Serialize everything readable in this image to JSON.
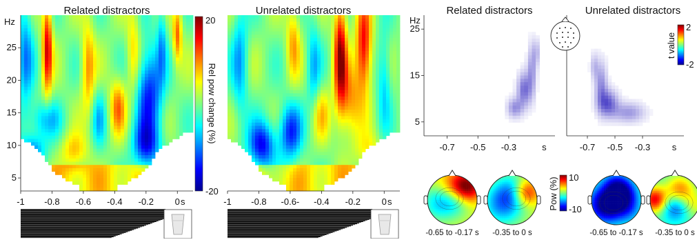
{
  "chart_data": [
    {
      "type": "heatmap",
      "title": "Related distractors",
      "ylabel": "Hz",
      "xlabel": "s",
      "xlim": [
        -1,
        0.1
      ],
      "ylim": [
        3,
        30
      ],
      "x_ticks": [
        "-1",
        "-0.8",
        "-0.6",
        "-0.4",
        "-0.2",
        "0"
      ],
      "y_ticks": [
        "25",
        "20",
        "15",
        "10",
        "5"
      ],
      "x_tick_values": [
        -1,
        -0.8,
        -0.6,
        -0.4,
        -0.2,
        0
      ],
      "y_tick_values": [
        25,
        20,
        15,
        10,
        5
      ],
      "blobs": [
        {
          "x": -0.83,
          "y": 25,
          "sx": 0.022,
          "sy": 5,
          "v": 16
        },
        {
          "x": -0.57,
          "y": 22,
          "sx": 0.03,
          "sy": 5,
          "v": 9
        },
        {
          "x": -0.38,
          "y": 16,
          "sx": 0.035,
          "sy": 3,
          "v": 10
        },
        {
          "x": -0.66,
          "y": 9,
          "sx": 0.06,
          "sy": 2,
          "v": 7
        },
        {
          "x": -0.18,
          "y": 18,
          "sx": 0.06,
          "sy": 5,
          "v": -14
        },
        {
          "x": -0.2,
          "y": 10,
          "sx": 0.06,
          "sy": 2.5,
          "v": -12
        },
        {
          "x": -0.97,
          "y": 24,
          "sx": 0.035,
          "sy": 6,
          "v": -9
        },
        {
          "x": -0.85,
          "y": 14,
          "sx": 0.08,
          "sy": 2,
          "v": -7
        },
        {
          "x": -0.93,
          "y": 9,
          "sx": 0.06,
          "sy": 1.8,
          "v": -10
        },
        {
          "x": -0.1,
          "y": 26,
          "sx": 0.02,
          "sy": 4,
          "v": -7
        },
        {
          "x": 0.0,
          "y": 27,
          "sx": 0.02,
          "sy": 3,
          "v": 11
        },
        {
          "x": -0.5,
          "y": 14,
          "sx": 0.03,
          "sy": 3,
          "v": -6
        },
        {
          "x": -0.28,
          "y": 24,
          "sx": 0.03,
          "sy": 5,
          "v": 7
        }
      ]
    },
    {
      "type": "heatmap",
      "title": "Unrelated distractors",
      "xlabel": "s",
      "xlim": [
        -1,
        0.1
      ],
      "ylim": [
        3,
        30
      ],
      "x_ticks": [
        "-1",
        "-0.8",
        "-0.6-",
        "-0.4",
        "-0.2",
        "0"
      ],
      "x_tick_values": [
        -1,
        -0.8,
        -0.6,
        -0.4,
        -0.2,
        0
      ],
      "blobs": [
        {
          "x": -0.28,
          "y": 24,
          "sx": 0.028,
          "sy": 6,
          "v": 18
        },
        {
          "x": -0.13,
          "y": 25,
          "sx": 0.035,
          "sy": 5,
          "v": 16
        },
        {
          "x": -0.22,
          "y": 17,
          "sx": 0.05,
          "sy": 4,
          "v": 9
        },
        {
          "x": -0.78,
          "y": 10,
          "sx": 0.06,
          "sy": 2.5,
          "v": -15
        },
        {
          "x": -0.6,
          "y": 12,
          "sx": 0.05,
          "sy": 3,
          "v": -13
        },
        {
          "x": -0.92,
          "y": 23,
          "sx": 0.035,
          "sy": 6,
          "v": -8
        },
        {
          "x": -0.45,
          "y": 22,
          "sx": 0.03,
          "sy": 5,
          "v": -7
        },
        {
          "x": -0.58,
          "y": 26,
          "sx": 0.03,
          "sy": 4,
          "v": 8
        },
        {
          "x": -0.4,
          "y": 15,
          "sx": 0.04,
          "sy": 3,
          "v": 6
        },
        {
          "x": -0.1,
          "y": 9,
          "sx": 0.06,
          "sy": 2,
          "v": 5
        },
        {
          "x": 0.0,
          "y": 20,
          "sx": 0.03,
          "sy": 5,
          "v": -7
        }
      ]
    },
    {
      "type": "heatmap",
      "title": "Related distractors",
      "ylabel": "Hz",
      "xlabel": "s",
      "xlim": [
        -0.85,
        0.0
      ],
      "ylim": [
        2,
        28
      ],
      "x_ticks": [
        "-0.7",
        "-0.5",
        "-0.3",
        "s"
      ],
      "x_tick_values": [
        -0.7,
        -0.5,
        -0.3,
        -0.07
      ],
      "y_ticks": [
        "25",
        "15",
        "5"
      ],
      "y_tick_values": [
        25,
        15,
        5
      ],
      "blobs": [
        {
          "x": -0.2,
          "y": 12,
          "sx": 0.03,
          "sy": 2.5,
          "v": 0.8
        },
        {
          "x": -0.15,
          "y": 16,
          "sx": 0.02,
          "sy": 4,
          "v": 0.55
        },
        {
          "x": -0.26,
          "y": 8,
          "sx": 0.035,
          "sy": 1.5,
          "v": 0.6
        },
        {
          "x": -0.12,
          "y": 20,
          "sx": 0.015,
          "sy": 2,
          "v": 0.35
        }
      ]
    },
    {
      "type": "heatmap",
      "title": "Unrelated distractors",
      "xlabel": "s",
      "xlim": [
        -0.85,
        0.0
      ],
      "ylim": [
        2,
        28
      ],
      "x_ticks": [
        "-0.7",
        "-0.5",
        "-0.3",
        "s"
      ],
      "x_tick_values": [
        -0.7,
        -0.5,
        -0.3,
        -0.07
      ],
      "blobs": [
        {
          "x": -0.55,
          "y": 9,
          "sx": 0.05,
          "sy": 2,
          "v": 0.85
        },
        {
          "x": -0.6,
          "y": 13,
          "sx": 0.03,
          "sy": 3.5,
          "v": 0.6
        },
        {
          "x": -0.4,
          "y": 7,
          "sx": 0.08,
          "sy": 1.5,
          "v": 0.55
        },
        {
          "x": -0.65,
          "y": 17,
          "sx": 0.02,
          "sy": 2,
          "v": 0.35
        }
      ]
    }
  ],
  "colorbar_main": {
    "label": "Rel pow change (%)",
    "max_label": "20",
    "min_label": "-20",
    "range": [
      -20,
      20
    ]
  },
  "colorbar_t": {
    "label": "t value",
    "max_label": "2",
    "min_label": "-2",
    "range": [
      -2,
      2
    ]
  },
  "colorbar_topo": {
    "label": "Pow (%)",
    "max_label": "10",
    "min_label": "-10",
    "range": [
      -10,
      10
    ]
  },
  "topomaps": [
    {
      "caption": "-0.65 to -0.17 s",
      "condition": "related",
      "spots": [
        {
          "u": 0.8,
          "v": 0.25,
          "s": 0.22,
          "val": 8
        },
        {
          "u": 0.25,
          "v": 0.55,
          "s": 0.25,
          "val": -5
        },
        {
          "u": 0.6,
          "v": 0.55,
          "s": 0.2,
          "val": -3
        },
        {
          "u": 0.5,
          "v": 0.2,
          "s": 0.25,
          "val": 3
        }
      ]
    },
    {
      "caption": "-0.35 to 0 s",
      "condition": "related",
      "spots": [
        {
          "u": 0.78,
          "v": 0.35,
          "s": 0.18,
          "val": 7
        },
        {
          "u": 0.3,
          "v": 0.6,
          "s": 0.3,
          "val": -6
        },
        {
          "u": 0.5,
          "v": 0.3,
          "s": 0.25,
          "val": -4
        }
      ]
    },
    {
      "caption": "-0.65 to -0.17 s",
      "condition": "unrelated",
      "spots": [
        {
          "u": 0.3,
          "v": 0.6,
          "s": 0.25,
          "val": -10
        },
        {
          "u": 0.65,
          "v": 0.4,
          "s": 0.2,
          "val": -6
        },
        {
          "u": 0.75,
          "v": 0.7,
          "s": 0.2,
          "val": -3
        },
        {
          "u": 0.5,
          "v": 0.2,
          "s": 0.2,
          "val": -5
        }
      ]
    },
    {
      "caption": "-0.35 to 0 s",
      "condition": "unrelated",
      "spots": [
        {
          "u": 0.1,
          "v": 0.5,
          "s": 0.18,
          "val": 9
        },
        {
          "u": 0.6,
          "v": 0.3,
          "s": 0.2,
          "val": 6
        },
        {
          "u": 0.5,
          "v": 0.65,
          "s": 0.2,
          "val": -5
        },
        {
          "u": 0.9,
          "v": 0.6,
          "s": 0.18,
          "val": 3
        }
      ]
    }
  ]
}
